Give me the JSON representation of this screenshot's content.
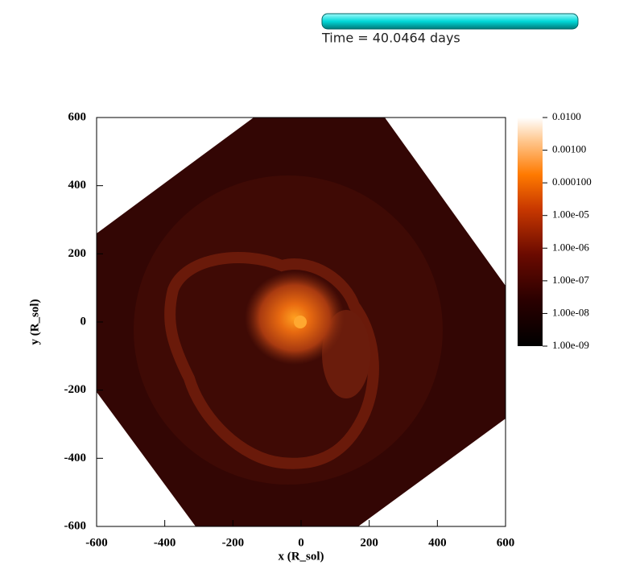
{
  "chart_data": {
    "type": "pseudocolor",
    "time_label": "Time = 40.0464 days",
    "xlabel": "x (R_sol)",
    "ylabel": "y (R_sol)",
    "xlim": [
      -600,
      600
    ],
    "ylim": [
      -600,
      600
    ],
    "xticks": [
      -600,
      -400,
      -200,
      0,
      200,
      400,
      600
    ],
    "yticks": [
      -600,
      -400,
      -200,
      0,
      200,
      400,
      600
    ],
    "colorbar": {
      "scale": "log",
      "lim": [
        1e-09,
        0.01
      ],
      "ticks": [
        {
          "value": 0.01,
          "label": "0.0100"
        },
        {
          "value": 0.001,
          "label": "0.00100"
        },
        {
          "value": 0.0001,
          "label": "0.000100"
        },
        {
          "value": 1e-05,
          "label": "1.00e-05"
        },
        {
          "value": 1e-06,
          "label": "1.00e-06"
        },
        {
          "value": 1e-07,
          "label": "1.00e-07"
        },
        {
          "value": 1e-08,
          "label": "1.00e-08"
        },
        {
          "value": 1e-09,
          "label": "1.00e-09"
        }
      ]
    }
  }
}
